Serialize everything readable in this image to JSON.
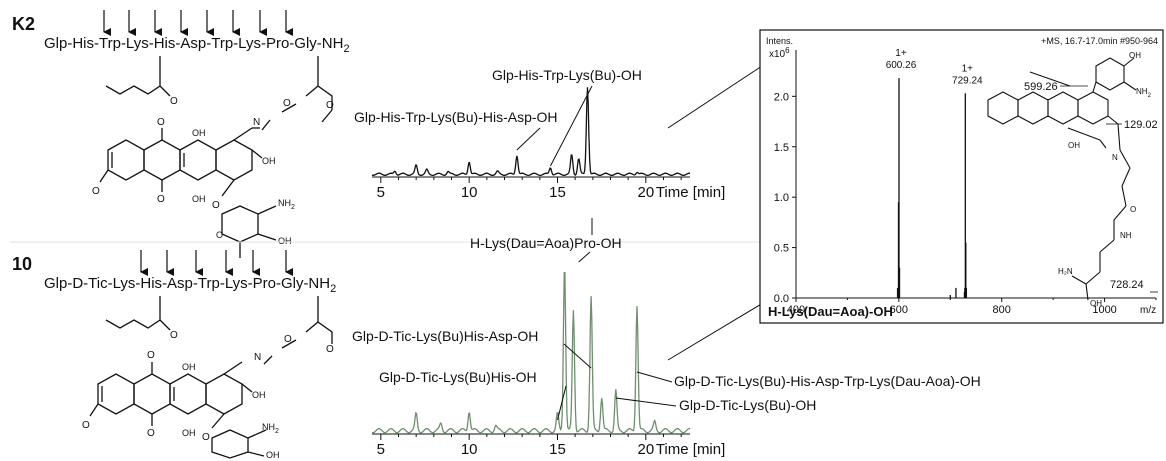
{
  "panels": {
    "k2_id": "K2",
    "c10_id": "10",
    "k2_sequence": "Glp-His-Trp-Lys-His-Asp-Trp-Lys-Pro-Gly-NH",
    "c10_sequence": "Glp-D-Tic-Lys-His-Asp-Trp-Lys-Pro-Gly-NH",
    "nh2_subscript": "2"
  },
  "structure_labels": {
    "oh": "OH",
    "o": "O",
    "n": "N",
    "nh2": "NH",
    "nh2_sub": "2",
    "h2n": "H₂N",
    "nh": "NH"
  },
  "chart_data": [
    {
      "type": "line",
      "id": "k2-chromatogram",
      "xlabel": "Time [min]",
      "x_ticks": [
        5,
        10,
        15,
        20
      ],
      "xlim": [
        4.5,
        22.5
      ],
      "color": "#111111",
      "peaks": [
        {
          "t": 5.8,
          "h": 0.04
        },
        {
          "t": 7.0,
          "h": 0.1
        },
        {
          "t": 7.6,
          "h": 0.05
        },
        {
          "t": 8.8,
          "h": 0.03
        },
        {
          "t": 10.0,
          "h": 0.15
        },
        {
          "t": 11.6,
          "h": 0.03
        },
        {
          "t": 12.7,
          "h": 0.22
        },
        {
          "t": 14.6,
          "h": 0.08
        },
        {
          "t": 15.8,
          "h": 0.22
        },
        {
          "t": 16.2,
          "h": 0.18
        },
        {
          "t": 16.7,
          "h": 1.0
        },
        {
          "t": 19.5,
          "h": 0.03
        }
      ],
      "annotations": [
        {
          "text": "Glp-His-Trp-Lys(Bu)-OH",
          "t": 14.6
        },
        {
          "text": "Glp-His-Trp-Lys(Bu)-His-Asp-OH",
          "t": 12.7
        }
      ]
    },
    {
      "type": "line",
      "id": "c10-chromatogram",
      "xlabel": "Time [min]",
      "x_ticks": [
        5,
        10,
        15,
        20
      ],
      "xlim": [
        4.5,
        22.5
      ],
      "color": "#6f8f6f",
      "peaks": [
        {
          "t": 7.0,
          "h": 0.1
        },
        {
          "t": 8.4,
          "h": 0.04
        },
        {
          "t": 10.0,
          "h": 0.12
        },
        {
          "t": 11.5,
          "h": 0.03
        },
        {
          "t": 15.0,
          "h": 0.1
        },
        {
          "t": 15.4,
          "h": 1.0
        },
        {
          "t": 15.9,
          "h": 0.72
        },
        {
          "t": 16.9,
          "h": 0.8
        },
        {
          "t": 17.5,
          "h": 0.2
        },
        {
          "t": 18.3,
          "h": 0.24
        },
        {
          "t": 19.5,
          "h": 0.75
        },
        {
          "t": 20.5,
          "h": 0.05
        }
      ],
      "annotations": [
        {
          "text": "H-Lys(Dau=Aoa)Pro-OH",
          "t": 16.2
        },
        {
          "text": "Glp-D-Tic-Lys(Bu)His-Asp-OH",
          "t": 16.9
        },
        {
          "text": "Glp-D-Tic-Lys(Bu)His-OH",
          "t": 15.0
        },
        {
          "text": "Glp-D-Tic-Lys(Bu)-His-Asp-Trp-Lys(Dau-Aoa)-OH",
          "t": 19.5
        },
        {
          "text": "Glp-D-Tic-Lys(Bu)-OH",
          "t": 18.3
        }
      ]
    },
    {
      "type": "bar",
      "id": "mass-spectrum",
      "title": "H-Lys(Dau=Aoa)-OH",
      "ylabel": "Intens.",
      "y_multiplier": "x10",
      "y_exponent": "6",
      "xlabel": "m/z",
      "header": "+MS, 16.7-17.0min #950-964",
      "xlim": [
        400,
        1100
      ],
      "ylim": [
        0,
        2.4
      ],
      "x_ticks": [
        400,
        600,
        800,
        1000
      ],
      "y_ticks": [
        "0.0",
        "0.5",
        "1.0",
        "1.5",
        "2.0"
      ],
      "y_tick_values": [
        0,
        0.5,
        1.0,
        1.5,
        2.0
      ],
      "peaks": [
        {
          "mz": 597.5,
          "i": 0.1
        },
        {
          "mz": 599.3,
          "i": 0.95
        },
        {
          "mz": 600.26,
          "i": 2.18
        },
        {
          "mz": 601.3,
          "i": 0.3
        },
        {
          "mz": 700.0,
          "i": 0.03
        },
        {
          "mz": 711.0,
          "i": 0.1
        },
        {
          "mz": 727.5,
          "i": 0.06
        },
        {
          "mz": 728.24,
          "i": 0.1
        },
        {
          "mz": 729.24,
          "i": 2.03
        },
        {
          "mz": 730.2,
          "i": 0.55
        },
        {
          "mz": 731.3,
          "i": 0.1
        }
      ],
      "peak_labels": [
        {
          "charge": "1+",
          "value": "600.26",
          "mz": 600.26
        },
        {
          "charge": "1+",
          "value": "729.24",
          "mz": 729.24
        }
      ],
      "fragment_labels": [
        "599.26",
        "129.02",
        "728.24"
      ]
    }
  ]
}
